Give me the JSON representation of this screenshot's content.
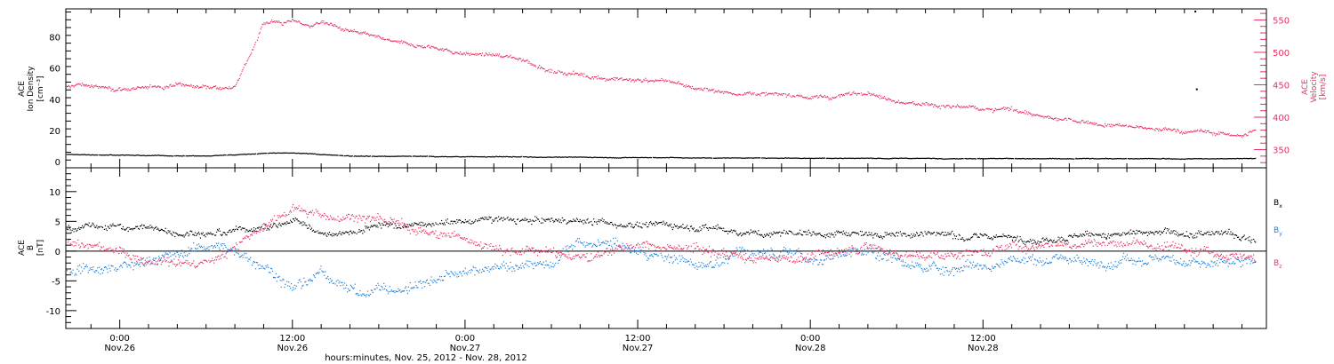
{
  "chart_data": [
    {
      "type": "scatter",
      "panel": "top",
      "x_unit": "hours since 2012-11-25 00:00 UT",
      "xlim": [
        20.25,
        103.7
      ],
      "left_axis": {
        "label_lines": [
          "ACE",
          "Ion Density",
          "[cm⁻³]"
        ],
        "ticks": [
          0,
          20,
          40,
          60,
          80
        ],
        "ylim": [
          -4,
          98
        ]
      },
      "right_axis": {
        "label_lines": [
          "ACE",
          "Velocity",
          "[km/s]"
        ],
        "ticks": [
          350,
          400,
          450,
          500,
          550
        ],
        "ylim": [
          322,
          567
        ],
        "color": "#e8305f"
      },
      "series": [
        {
          "axis": "right",
          "color": "#e8305f",
          "x": [
            20.3,
            21,
            22,
            24,
            26,
            28,
            29.5,
            30,
            32,
            34,
            34.8,
            35.3,
            36,
            37,
            38,
            40,
            42,
            44,
            46,
            48,
            50,
            52,
            53,
            54,
            56,
            58,
            60,
            62,
            64,
            66,
            68,
            70,
            72,
            74,
            76,
            78,
            80,
            82,
            84,
            86,
            88,
            90,
            92,
            94,
            96,
            98,
            100,
            102,
            102.9
          ],
          "y": [
            445,
            450,
            448,
            444,
            446,
            450,
            445,
            447,
            447,
            545,
            548,
            545,
            550,
            540,
            545,
            530,
            520,
            510,
            505,
            498,
            495,
            488,
            480,
            470,
            465,
            460,
            457,
            455,
            445,
            438,
            436,
            432,
            430,
            432,
            440,
            425,
            420,
            415,
            410,
            412,
            400,
            395,
            390,
            386,
            380,
            378,
            375,
            372,
            378
          ],
          "jitter": 8
        },
        {
          "axis": "left",
          "color": "#000000",
          "x": [
            20.3,
            30,
            34.8,
            36,
            40,
            50,
            60,
            70,
            80,
            90,
            102.9
          ],
          "y": [
            4.5,
            3.5,
            5.5,
            5.5,
            3.5,
            3,
            2.5,
            2.2,
            2.0,
            1.8,
            1.8
          ],
          "jitter": 0.6
        }
      ],
      "isolated_points": [
        {
          "axis": "right",
          "x": 98.7,
          "y": 563
        },
        {
          "axis": "right",
          "x": 98.8,
          "y": 443
        }
      ]
    },
    {
      "type": "scatter",
      "panel": "bottom",
      "x_unit": "hours since 2012-11-25 00:00 UT",
      "xlim": [
        20.25,
        103.7
      ],
      "left_axis": {
        "label_lines": [
          "ACE",
          "B",
          "[nT]"
        ],
        "ticks": [
          -10,
          -5,
          0,
          5,
          10
        ],
        "ylim": [
          -13,
          14
        ]
      },
      "zero_line": true,
      "series": [
        {
          "name": "B",
          "sub": "x",
          "color": "#000000",
          "x": [
            20.3,
            25,
            30,
            34,
            36,
            38,
            42,
            46,
            50,
            54,
            56,
            60,
            64,
            68,
            72,
            76,
            80,
            84,
            88,
            92,
            96,
            100,
            102.9
          ],
          "y": [
            4,
            4,
            3,
            4,
            5,
            3,
            4,
            4.5,
            5,
            5,
            5,
            4.5,
            4,
            3,
            3,
            3,
            3,
            2.5,
            2,
            3,
            3,
            3,
            2
          ],
          "jitter": 1.5
        },
        {
          "name": "B",
          "sub": "y",
          "color": "#1f7fd8",
          "x": [
            20.3,
            25,
            30,
            34,
            36,
            38,
            41,
            44,
            46,
            50,
            54,
            56,
            60,
            64,
            68,
            72,
            76,
            80,
            84,
            88,
            92,
            96,
            100,
            102.9
          ],
          "y": [
            -3,
            -2,
            1,
            -2,
            -6,
            -4,
            -7,
            -6,
            -4,
            -3,
            -2,
            1,
            0,
            -2,
            0,
            -1,
            0,
            -3,
            -2,
            -1,
            -2,
            -1,
            -2,
            -2
          ],
          "jitter": 2.4
        },
        {
          "name": "B",
          "sub": "z",
          "color": "#e8305f",
          "x": [
            20.3,
            25,
            30,
            34,
            36,
            38,
            41,
            44,
            46,
            50,
            54,
            56,
            60,
            64,
            68,
            72,
            76,
            80,
            84,
            88,
            92,
            96,
            100,
            102.9
          ],
          "y": [
            2,
            -1,
            -2,
            4,
            7,
            6,
            6,
            4,
            3,
            1,
            0,
            -1,
            1,
            0,
            -1,
            -1,
            1,
            -1,
            0,
            1,
            2,
            1,
            0,
            -1
          ],
          "jitter": 2.0
        }
      ]
    }
  ],
  "x_axis": {
    "ticks": [
      {
        "hour": 24,
        "time": "0:00",
        "date": "Nov.26"
      },
      {
        "hour": 36,
        "time": "12:00",
        "date": "Nov.26"
      },
      {
        "hour": 48,
        "time": "0:00",
        "date": "Nov.27"
      },
      {
        "hour": 60,
        "time": "12:00",
        "date": "Nov.27"
      },
      {
        "hour": 72,
        "time": "0:00",
        "date": "Nov.28"
      },
      {
        "hour": 84,
        "time": "12:00",
        "date": "Nov.28"
      }
    ],
    "minor_step_hours": 2,
    "title": "hours:minutes, Nov. 25, 2012 - Nov. 28, 2012"
  },
  "colors": {
    "velocity": "#e8305f",
    "density": "#000000",
    "bx": "#000000",
    "by": "#1f7fd8",
    "bz": "#e8305f"
  }
}
